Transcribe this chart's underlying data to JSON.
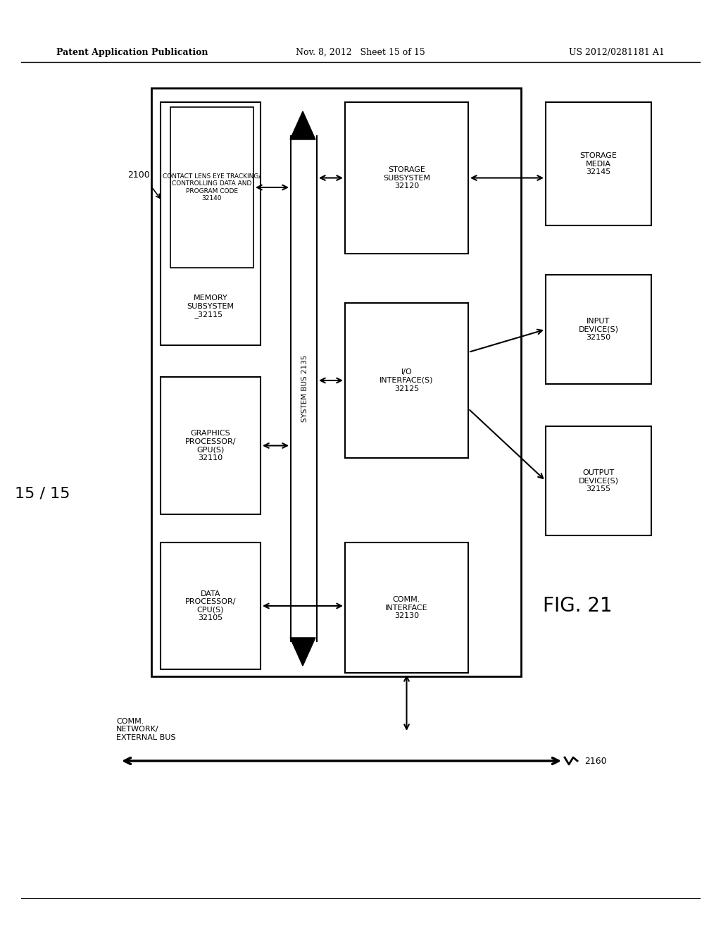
{
  "header_left": "Patent Application Publication",
  "header_mid": "Nov. 8, 2012   Sheet 15 of 15",
  "header_right": "US 2012/0281181 A1",
  "fig_label": "FIG. 21",
  "page_label": "15 / 15",
  "system_label": "2100",
  "bus_label": "SYSTEM BUS 2135",
  "background": "#ffffff"
}
